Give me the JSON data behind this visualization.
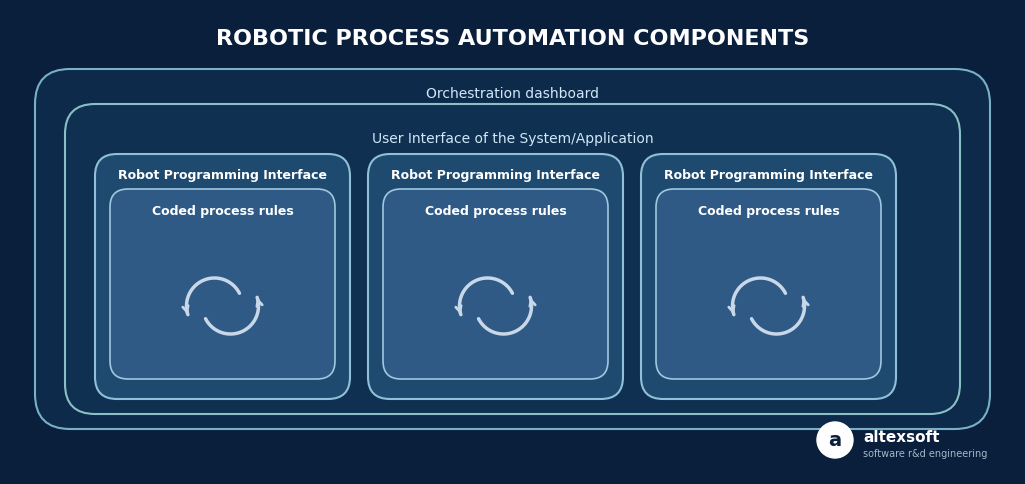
{
  "title": "ROBOTIC PROCESS AUTOMATION COMPONENTS",
  "bg_color": "#0a1f3c",
  "outer_box_color": "#1a3a5c",
  "outer_box_edge": "#6a9bbf",
  "inner_box1_color": "#1a3a5c",
  "inner_box1_edge": "#6a9bbf",
  "inner_box2_color": "#1e4060",
  "inner_box2_edge": "#7aabcf",
  "card_outer_color": "#2a5080",
  "card_outer_edge": "#8abcdf",
  "card_inner_color": "#3a6090",
  "card_inner_edge": "#9acdef",
  "text_color": "#ffffff",
  "label_color": "#d0e8f8",
  "orchestration_label": "Orchestration dashboard",
  "ui_label": "User Interface of the System/Application",
  "robot_label": "Robot Programming Interface",
  "coded_label": "Coded process rules",
  "altexsoft_text": "altexsoft",
  "altexsoft_sub": "software r&d engineering",
  "title_fontsize": 16,
  "label_fontsize": 10,
  "card_label_fontsize": 9,
  "inner_label_fontsize": 9
}
